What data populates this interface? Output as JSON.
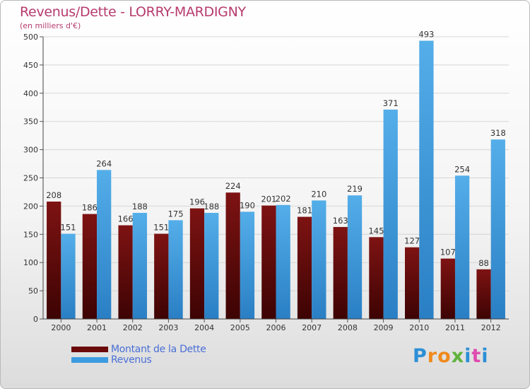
{
  "title": "Revenus/Dette - LORRY-MARDIGNY",
  "subtitle": "(en milliers d'€)",
  "colors": {
    "dette": "#6b0a0a",
    "revenus": "#3d9be0",
    "title": "#b73b6d"
  },
  "logo": {
    "text": "Proxiti",
    "letters": [
      "P",
      "r",
      "o",
      "x",
      "i",
      "t",
      "i"
    ],
    "colors": [
      "#2c8fd6",
      "#f08a1c",
      "#f08a1c",
      "#5fb33a",
      "#2c8fd6",
      "#e04bb0",
      "#2c8fd6"
    ]
  },
  "chart_data": {
    "type": "bar",
    "title": "Revenus/Dette - LORRY-MARDIGNY",
    "ylabel": "(en milliers d'€)",
    "categories": [
      "2000",
      "2001",
      "2002",
      "2003",
      "2004",
      "2005",
      "2006",
      "2007",
      "2008",
      "2009",
      "2010",
      "2011",
      "2012"
    ],
    "series": [
      {
        "name": "Montant de la Dette",
        "values": [
          208,
          186,
          166,
          151,
          196,
          224,
          201,
          181,
          163,
          145,
          127,
          107,
          88
        ]
      },
      {
        "name": "Revenus",
        "values": [
          151,
          264,
          188,
          175,
          188,
          190,
          202,
          210,
          219,
          371,
          493,
          254,
          318
        ]
      }
    ],
    "ylim": [
      0,
      500
    ],
    "yticks": [
      0,
      50,
      100,
      150,
      200,
      250,
      300,
      350,
      400,
      450,
      500
    ],
    "grid": true,
    "legend": "bottom-left"
  }
}
